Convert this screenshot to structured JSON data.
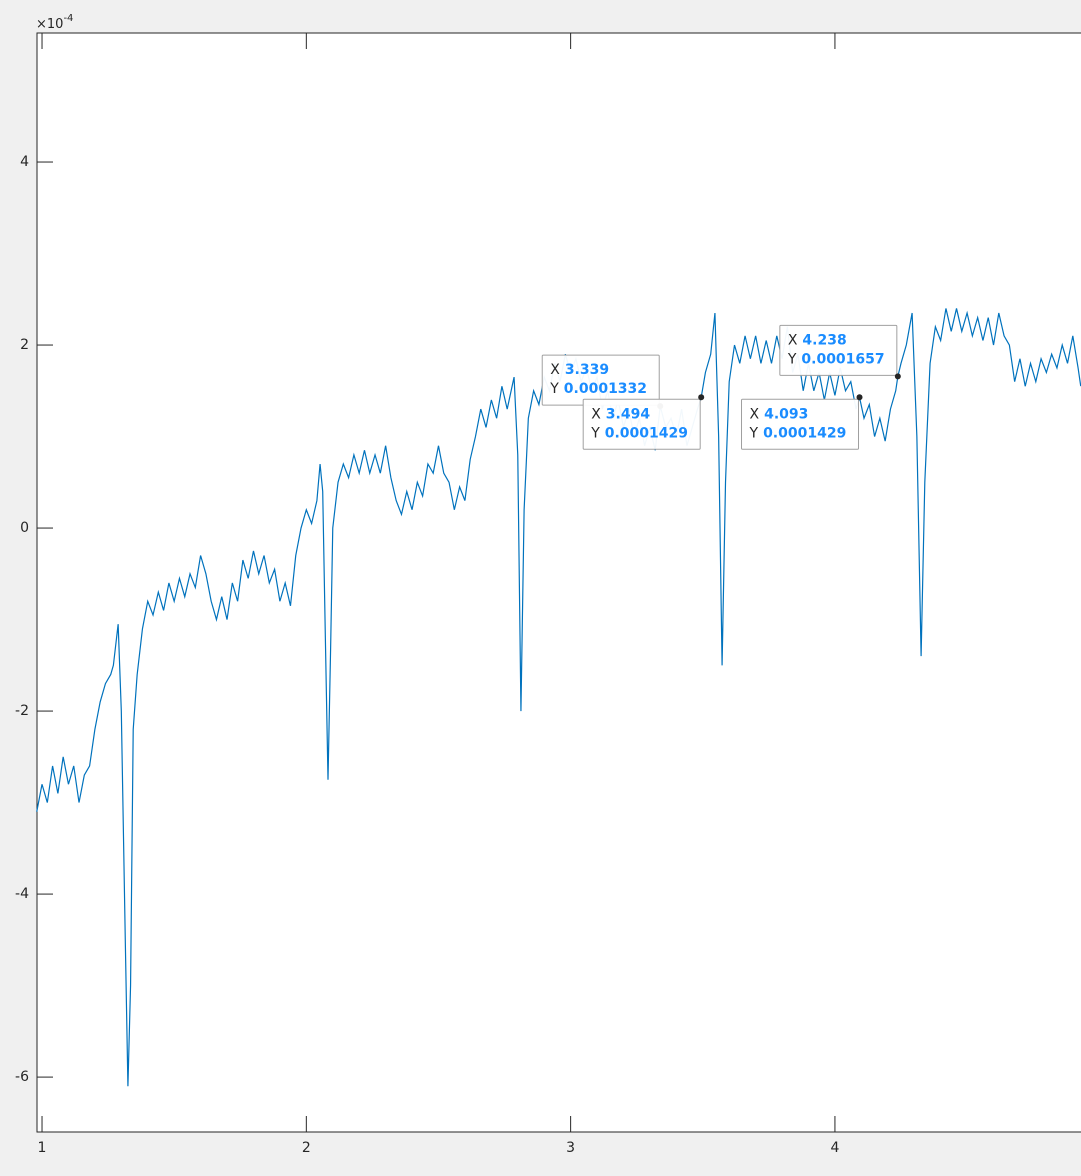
{
  "chart_data": {
    "type": "line",
    "y_exponent_base": "×10",
    "y_exponent": -4,
    "xlim": [
      0.981,
      4.931
    ],
    "ylim": [
      -6.6,
      5.41
    ],
    "xticks": [
      1,
      2,
      3,
      4
    ],
    "yticks": [
      -6,
      -4,
      -2,
      0,
      2,
      4
    ],
    "grid": false,
    "color": "#0072bd",
    "x": [
      0.98,
      1.0,
      1.02,
      1.04,
      1.06,
      1.08,
      1.1,
      1.12,
      1.14,
      1.16,
      1.18,
      1.2,
      1.22,
      1.24,
      1.26,
      1.27,
      1.288,
      1.3,
      1.315,
      1.325,
      1.335,
      1.345,
      1.36,
      1.38,
      1.4,
      1.42,
      1.44,
      1.46,
      1.48,
      1.5,
      1.52,
      1.54,
      1.56,
      1.58,
      1.6,
      1.62,
      1.64,
      1.66,
      1.68,
      1.7,
      1.72,
      1.74,
      1.76,
      1.78,
      1.8,
      1.82,
      1.84,
      1.86,
      1.88,
      1.9,
      1.92,
      1.94,
      1.96,
      1.98,
      2.0,
      2.02,
      2.04,
      2.052,
      2.062,
      2.072,
      2.082,
      2.092,
      2.1,
      2.12,
      2.14,
      2.16,
      2.18,
      2.2,
      2.22,
      2.24,
      2.26,
      2.28,
      2.3,
      2.32,
      2.34,
      2.36,
      2.38,
      2.4,
      2.42,
      2.44,
      2.46,
      2.48,
      2.5,
      2.52,
      2.54,
      2.56,
      2.58,
      2.6,
      2.62,
      2.64,
      2.66,
      2.68,
      2.7,
      2.72,
      2.74,
      2.76,
      2.786,
      2.8,
      2.812,
      2.824,
      2.84,
      2.86,
      2.88,
      2.9,
      2.92,
      2.94,
      2.96,
      2.98,
      3.0,
      3.02,
      3.04,
      3.06,
      3.08,
      3.1,
      3.12,
      3.14,
      3.16,
      3.18,
      3.2,
      3.22,
      3.24,
      3.26,
      3.28,
      3.3,
      3.32,
      3.339,
      3.36,
      3.38,
      3.4,
      3.42,
      3.44,
      3.46,
      3.48,
      3.494,
      3.51,
      3.53,
      3.546,
      3.56,
      3.573,
      3.586,
      3.6,
      3.62,
      3.64,
      3.66,
      3.68,
      3.7,
      3.72,
      3.74,
      3.76,
      3.78,
      3.8,
      3.82,
      3.84,
      3.86,
      3.88,
      3.9,
      3.92,
      3.94,
      3.96,
      3.98,
      4.0,
      4.02,
      4.04,
      4.06,
      4.08,
      4.093,
      4.11,
      4.13,
      4.15,
      4.17,
      4.19,
      4.21,
      4.23,
      4.238,
      4.25,
      4.27,
      4.292,
      4.31,
      4.326,
      4.34,
      4.36,
      4.38,
      4.4,
      4.42,
      4.44,
      4.46,
      4.48,
      4.5,
      4.52,
      4.54,
      4.56,
      4.58,
      4.6,
      4.62,
      4.64,
      4.66,
      4.68,
      4.7,
      4.72,
      4.74,
      4.76,
      4.78,
      4.8,
      4.82,
      4.84,
      4.86,
      4.88,
      4.9,
      4.92,
      4.93
    ],
    "values": [
      -3.1,
      -2.8,
      -3.0,
      -2.6,
      -2.9,
      -2.5,
      -2.8,
      -2.6,
      -3.0,
      -2.7,
      -2.6,
      -2.2,
      -1.9,
      -1.7,
      -1.6,
      -1.5,
      -1.05,
      -2.0,
      -4.5,
      -6.1,
      -5.0,
      -2.2,
      -1.6,
      -1.1,
      -0.8,
      -0.95,
      -0.7,
      -0.9,
      -0.6,
      -0.8,
      -0.55,
      -0.75,
      -0.5,
      -0.65,
      -0.3,
      -0.5,
      -0.8,
      -1.0,
      -0.75,
      -1.0,
      -0.6,
      -0.8,
      -0.35,
      -0.55,
      -0.25,
      -0.5,
      -0.3,
      -0.6,
      -0.45,
      -0.8,
      -0.6,
      -0.85,
      -0.3,
      0.0,
      0.2,
      0.05,
      0.3,
      0.7,
      0.4,
      -1.2,
      -2.75,
      -1.3,
      0.0,
      0.5,
      0.7,
      0.55,
      0.8,
      0.6,
      0.85,
      0.6,
      0.8,
      0.6,
      0.9,
      0.55,
      0.3,
      0.15,
      0.4,
      0.2,
      0.5,
      0.35,
      0.7,
      0.6,
      0.9,
      0.6,
      0.5,
      0.2,
      0.45,
      0.3,
      0.75,
      1.0,
      1.3,
      1.1,
      1.4,
      1.2,
      1.55,
      1.3,
      1.65,
      0.8,
      -2.0,
      0.2,
      1.2,
      1.5,
      1.35,
      1.65,
      1.5,
      1.8,
      1.6,
      1.9,
      1.7,
      1.85,
      1.6,
      1.75,
      1.5,
      1.65,
      1.3,
      1.5,
      1.2,
      1.4,
      1.1,
      1.3,
      1.0,
      1.2,
      0.9,
      1.1,
      0.85,
      1.332,
      1.1,
      1.2,
      1.0,
      1.3,
      0.9,
      1.1,
      1.3,
      1.429,
      1.7,
      1.9,
      2.35,
      1.0,
      -1.5,
      0.5,
      1.6,
      2.0,
      1.8,
      2.1,
      1.85,
      2.1,
      1.8,
      2.05,
      1.8,
      2.1,
      1.85,
      2.2,
      1.7,
      1.9,
      1.5,
      1.8,
      1.5,
      1.7,
      1.4,
      1.7,
      1.45,
      1.75,
      1.5,
      1.6,
      1.3,
      1.429,
      1.2,
      1.35,
      1.0,
      1.2,
      0.95,
      1.3,
      1.5,
      1.657,
      1.8,
      2.0,
      2.35,
      1.0,
      -1.4,
      0.5,
      1.8,
      2.2,
      2.05,
      2.4,
      2.15,
      2.4,
      2.15,
      2.35,
      2.1,
      2.3,
      2.05,
      2.3,
      2.0,
      2.35,
      2.1,
      2.0,
      1.6,
      1.85,
      1.55,
      1.8,
      1.6,
      1.85,
      1.7,
      1.9,
      1.75,
      2.0,
      1.8,
      2.1,
      1.75,
      1.55
    ],
    "datatips": [
      {
        "x_label": "X",
        "x": 3.339,
        "y_label": "Y",
        "y": 0.0001332
      },
      {
        "x_label": "X",
        "x": 3.494,
        "y_label": "Y",
        "y": 0.0001429
      },
      {
        "x_label": "X",
        "x": 4.093,
        "y_label": "Y",
        "y": 0.0001429
      },
      {
        "x_label": "X",
        "x": 4.238,
        "y_label": "Y",
        "y": 0.0001657
      }
    ]
  }
}
